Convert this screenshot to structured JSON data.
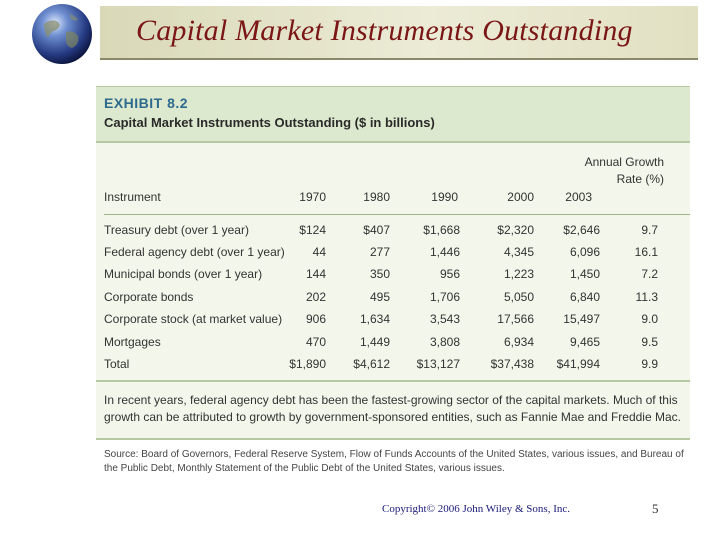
{
  "slide": {
    "title": "Capital Market Instruments Outstanding",
    "copyright": "Copyright© 2006 John Wiley & Sons, Inc.",
    "page_number": "5"
  },
  "exhibit": {
    "label": "EXHIBIT 8.2",
    "title": "Capital Market Instruments Outstanding ($ in billions)",
    "columns": [
      "Instrument",
      "1970",
      "1980",
      "1990",
      "2000",
      "2003",
      "Annual Growth Rate (%)"
    ],
    "rows": [
      [
        "Treasury debt (over 1 year)",
        "$124",
        "$407",
        "$1,668",
        "$2,320",
        "$2,646",
        "9.7"
      ],
      [
        "Federal agency debt (over 1 year)",
        "44",
        "277",
        "1,446",
        "4,345",
        "6,096",
        "16.1"
      ],
      [
        "Municipal bonds (over 1 year)",
        "144",
        "350",
        "956",
        "1,223",
        "1,450",
        "7.2"
      ],
      [
        "Corporate bonds",
        "202",
        "495",
        "1,706",
        "5,050",
        "6,840",
        "11.3"
      ],
      [
        "Corporate stock (at market value)",
        "906",
        "1,634",
        "3,543",
        "17,566",
        "15,497",
        "9.0"
      ],
      [
        "Mortgages",
        "470",
        "1,449",
        "3,808",
        "6,934",
        "9,465",
        "9.5"
      ],
      [
        "Total",
        "$1,890",
        "$4,612",
        "$13,127",
        "$37,438",
        "$41,994",
        "9.9"
      ]
    ],
    "note": "In recent years, federal agency debt has been the fastest-growing sector of the capital markets. Much of this growth can be attributed to growth by government-sponsored entities, such as Fannie Mae and Freddie Mac.",
    "source": "Source: Board of Governors, Federal Reserve System, Flow of Funds Accounts of the United States, various issues, and Bureau of the Public Debt, Monthly Statement of the Public Debt of the United States, various issues."
  },
  "colors": {
    "title": "#7a1616",
    "exhibit_label": "#2d6a8c",
    "exhibit_header_bg": "#dde9cf",
    "exhibit_body_bg": "#f3f6ea"
  },
  "icons": {
    "logo": "globe-icon"
  }
}
